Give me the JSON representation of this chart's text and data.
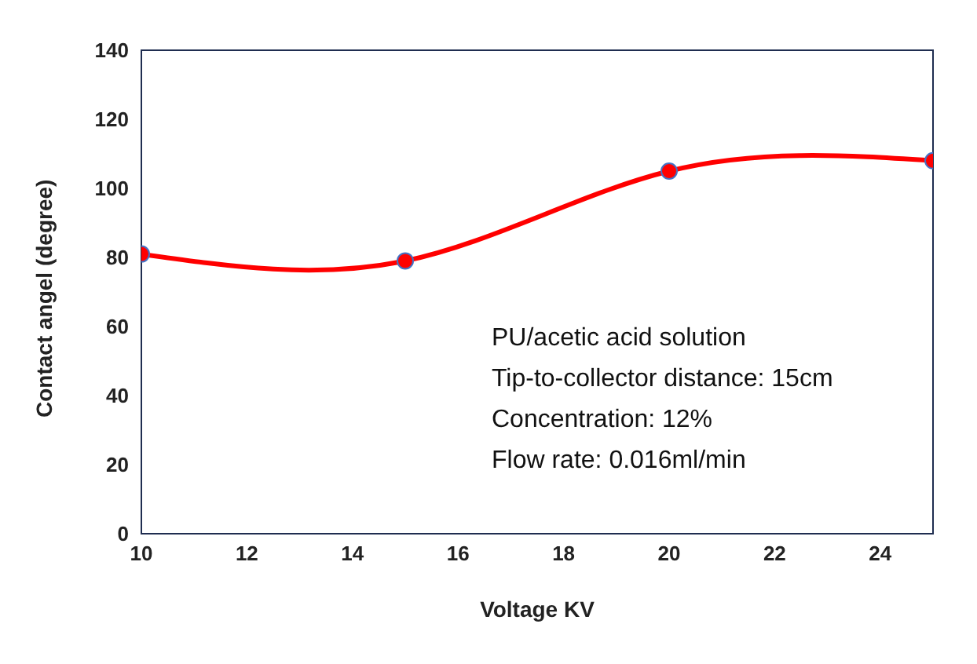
{
  "chart_data": {
    "type": "line",
    "xlabel": "Voltage KV",
    "ylabel": "Contact angel (degree)",
    "x": [
      10,
      15,
      20,
      25
    ],
    "series": [
      {
        "color": "#ff0000",
        "values": [
          81,
          79,
          105,
          108
        ]
      }
    ],
    "xlim": [
      10,
      25
    ],
    "xticks": [
      10,
      12,
      14,
      16,
      18,
      20,
      22,
      24
    ],
    "ylim": [
      0,
      140
    ],
    "yticks": [
      0,
      20,
      40,
      60,
      80,
      100,
      120,
      140
    ],
    "grid": false,
    "legend": false,
    "marker": "circle",
    "line_style": "solid",
    "annotations": [
      "PU/acetic acid solution",
      "Tip-to-collector distance: 15cm",
      "Concentration: 12%",
      "Flow rate: 0.016ml/min"
    ]
  }
}
